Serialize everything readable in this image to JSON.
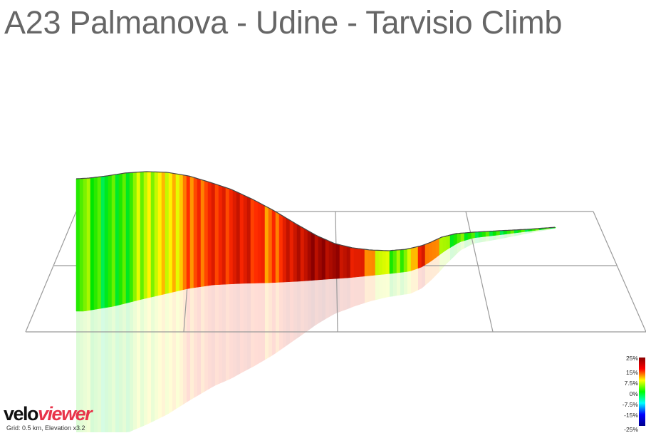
{
  "title": "A23 Palmanova - Udine - Tarvisio Climb",
  "brand": {
    "part1": "velo",
    "part2": "viewer"
  },
  "footer": {
    "text": "Grid: 0.5 km, Elevation x3.2"
  },
  "legend": {
    "ticks": [
      "25%",
      "15%",
      "7.5%",
      "0%",
      "-7.5%",
      "-15%",
      "-25%"
    ],
    "colors": [
      "#8b0000",
      "#ff0000",
      "#ffff00",
      "#00ff00",
      "#00ffff",
      "#0000ff",
      "#00008b"
    ]
  },
  "chart_data": {
    "type": "area",
    "title": "A23 Palmanova - Udine - Tarvisio Climb",
    "xlabel": "",
    "ylabel": "",
    "grid": true,
    "grid_spacing_km": 0.5,
    "elevation_exaggeration": 3.2,
    "gradient_color_scale": {
      "min": "-25%",
      "max": "25%"
    },
    "series": [
      {
        "values": [
          {
            "profile_fraction": 0.0,
            "gradient_pct": 4
          },
          {
            "profile_fraction": 0.06,
            "gradient_pct": 0
          },
          {
            "profile_fraction": 0.1,
            "gradient_pct": 1
          },
          {
            "profile_fraction": 0.15,
            "gradient_pct": 6
          },
          {
            "profile_fraction": 0.2,
            "gradient_pct": 8
          },
          {
            "profile_fraction": 0.25,
            "gradient_pct": 14
          },
          {
            "profile_fraction": 0.3,
            "gradient_pct": 16
          },
          {
            "profile_fraction": 0.36,
            "gradient_pct": 18
          },
          {
            "profile_fraction": 0.4,
            "gradient_pct": 12
          },
          {
            "profile_fraction": 0.46,
            "gradient_pct": 20
          },
          {
            "profile_fraction": 0.52,
            "gradient_pct": 24
          },
          {
            "profile_fraction": 0.58,
            "gradient_pct": 19
          },
          {
            "profile_fraction": 0.62,
            "gradient_pct": 10
          },
          {
            "profile_fraction": 0.66,
            "gradient_pct": 2
          },
          {
            "profile_fraction": 0.7,
            "gradient_pct": 6
          },
          {
            "profile_fraction": 0.72,
            "gradient_pct": 18
          },
          {
            "profile_fraction": 0.78,
            "gradient_pct": 2
          },
          {
            "profile_fraction": 0.85,
            "gradient_pct": 0
          },
          {
            "profile_fraction": 1.0,
            "gradient_pct": 1
          }
        ]
      }
    ]
  }
}
